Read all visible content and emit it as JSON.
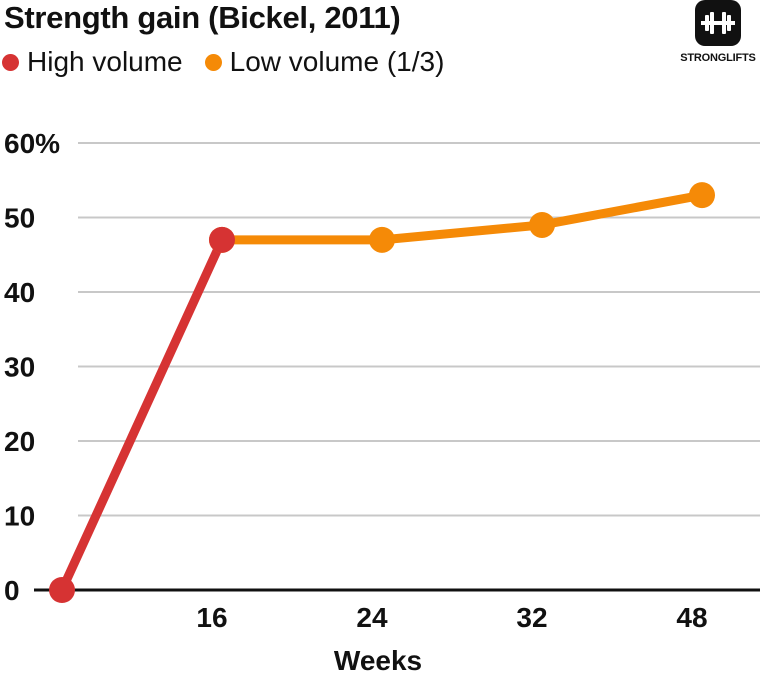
{
  "chart_data": {
    "type": "line",
    "title": "Strength gain (Bickel, 2011)",
    "xlabel": "Weeks",
    "ylabel": "",
    "categories": [
      "0",
      "16",
      "24",
      "32",
      "48"
    ],
    "x_tick_labels": [
      "16",
      "24",
      "32",
      "48"
    ],
    "y_tick_labels": [
      "0",
      "10",
      "20",
      "30",
      "40",
      "50",
      "60%"
    ],
    "ylim": [
      0,
      60
    ],
    "grid": true,
    "legend_position": "top-left",
    "series": [
      {
        "name": "High volume",
        "color": "#d63333",
        "points": [
          {
            "x": "0",
            "y": 0
          },
          {
            "x": "16",
            "y": 47
          }
        ]
      },
      {
        "name": "Low volume (1/3)",
        "color": "#f58a07",
        "points": [
          {
            "x": "16",
            "y": 47
          },
          {
            "x": "24",
            "y": 47
          },
          {
            "x": "32",
            "y": 49
          },
          {
            "x": "48",
            "y": 53
          }
        ]
      }
    ]
  },
  "logo": {
    "text": "STRONGLIFTS",
    "icon": "barbell-icon"
  }
}
